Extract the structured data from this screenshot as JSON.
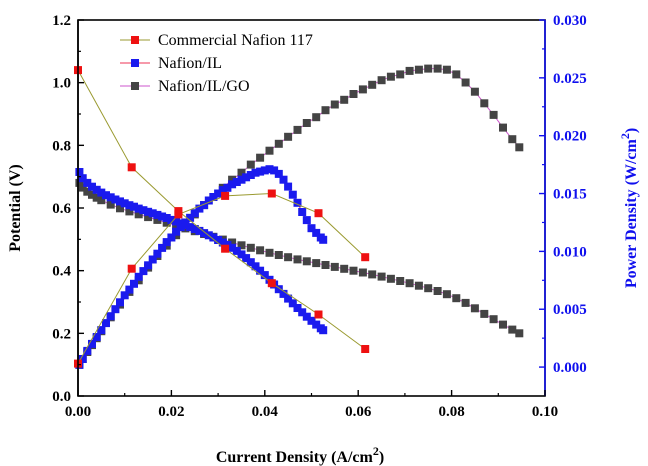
{
  "chart_data": {
    "type": "line",
    "xlabel": "Current Density (A/cm",
    "xlabel_sup": "2",
    "xlabel_close": ")",
    "ylabel_left": "Potential (V)",
    "ylabel_right": "Power Density (W/cm",
    "ylabel_right_sup": "2",
    "ylabel_right_close": ")",
    "xlim": [
      0.0,
      0.1
    ],
    "ylim_left": [
      0.0,
      1.2
    ],
    "ylim_right": [
      -0.0025,
      0.03
    ],
    "x_ticks": [
      "0.00",
      "0.02",
      "0.04",
      "0.06",
      "0.08",
      "0.10"
    ],
    "y_left_ticks": [
      "0.0",
      "0.2",
      "0.4",
      "0.6",
      "0.8",
      "1.0",
      "1.2"
    ],
    "y_right_ticks": [
      "0.000",
      "0.005",
      "0.010",
      "0.015",
      "0.020",
      "0.025",
      "0.030"
    ],
    "legend_position": "top-left",
    "colors": {
      "left_axis": "#000000",
      "right_axis": "#1010ee"
    },
    "series": [
      {
        "name": "Commercial Nafion 117",
        "marker_color": "#ee1111",
        "line_color": "#9a9a30",
        "polarization": {
          "x": [
            0.0,
            0.0115,
            0.0215,
            0.0315,
            0.0415,
            0.0515,
            0.0615
          ],
          "y": [
            1.04,
            0.73,
            0.59,
            0.47,
            0.36,
            0.26,
            0.15
          ]
        },
        "power": {
          "x": [
            0.0,
            0.0115,
            0.0215,
            0.0315,
            0.0415,
            0.0515,
            0.0615
          ],
          "y": [
            0.0003,
            0.0085,
            0.0132,
            0.0148,
            0.015,
            0.0133,
            0.0095
          ]
        }
      },
      {
        "name": "Nafion/IL",
        "marker_color": "#1a1aee",
        "line_color": "#ee3355",
        "polarization": {
          "x": [
            0.0003,
            0.001,
            0.002,
            0.003,
            0.004,
            0.005,
            0.006,
            0.007,
            0.008,
            0.009,
            0.01,
            0.011,
            0.012,
            0.013,
            0.014,
            0.015,
            0.016,
            0.017,
            0.018,
            0.019,
            0.02,
            0.021,
            0.022,
            0.023,
            0.024,
            0.025,
            0.026,
            0.027,
            0.028,
            0.029,
            0.03,
            0.031,
            0.032,
            0.033,
            0.034,
            0.035,
            0.036,
            0.037,
            0.038,
            0.039,
            0.04,
            0.041,
            0.042,
            0.043,
            0.044,
            0.045,
            0.046,
            0.047,
            0.048,
            0.049,
            0.05,
            0.051,
            0.052,
            0.0525
          ],
          "y": [
            0.715,
            0.695,
            0.68,
            0.668,
            0.658,
            0.649,
            0.641,
            0.634,
            0.627,
            0.621,
            0.615,
            0.609,
            0.604,
            0.598,
            0.593,
            0.588,
            0.583,
            0.578,
            0.573,
            0.568,
            0.562,
            0.557,
            0.551,
            0.545,
            0.539,
            0.533,
            0.527,
            0.52,
            0.513,
            0.506,
            0.498,
            0.49,
            0.482,
            0.473,
            0.463,
            0.452,
            0.44,
            0.427,
            0.414,
            0.4,
            0.386,
            0.371,
            0.356,
            0.341,
            0.326,
            0.311,
            0.296,
            0.281,
            0.267,
            0.253,
            0.24,
            0.228,
            0.216,
            0.21
          ]
        },
        "power": {
          "x": [
            0.0003,
            0.001,
            0.002,
            0.003,
            0.004,
            0.005,
            0.006,
            0.007,
            0.008,
            0.009,
            0.01,
            0.011,
            0.012,
            0.013,
            0.014,
            0.015,
            0.016,
            0.017,
            0.018,
            0.019,
            0.02,
            0.021,
            0.022,
            0.023,
            0.024,
            0.025,
            0.026,
            0.027,
            0.028,
            0.029,
            0.03,
            0.031,
            0.032,
            0.033,
            0.034,
            0.035,
            0.036,
            0.037,
            0.038,
            0.039,
            0.04,
            0.041,
            0.042,
            0.043,
            0.044,
            0.045,
            0.046,
            0.047,
            0.048,
            0.049,
            0.05,
            0.051,
            0.052,
            0.0525
          ],
          "y": [
            0.0002,
            0.0007,
            0.0014,
            0.002,
            0.0026,
            0.0032,
            0.0038,
            0.0044,
            0.005,
            0.0056,
            0.0062,
            0.0067,
            0.0072,
            0.0078,
            0.0083,
            0.0088,
            0.0093,
            0.0098,
            0.0103,
            0.0108,
            0.0112,
            0.0117,
            0.0121,
            0.0125,
            0.0129,
            0.0133,
            0.0137,
            0.014,
            0.0144,
            0.0147,
            0.015,
            0.0153,
            0.0155,
            0.0158,
            0.016,
            0.0162,
            0.0164,
            0.0166,
            0.0168,
            0.0169,
            0.017,
            0.0171,
            0.017,
            0.0167,
            0.0162,
            0.0156,
            0.0149,
            0.0142,
            0.0134,
            0.0127,
            0.012,
            0.0116,
            0.0112,
            0.011
          ]
        }
      },
      {
        "name": "Nafion/IL/GO",
        "marker_color": "#444444",
        "line_color": "#cc55cc",
        "polarization": {
          "x": [
            0.0003,
            0.001,
            0.002,
            0.003,
            0.004,
            0.005,
            0.007,
            0.009,
            0.011,
            0.013,
            0.015,
            0.017,
            0.019,
            0.021,
            0.023,
            0.025,
            0.027,
            0.029,
            0.031,
            0.033,
            0.035,
            0.037,
            0.039,
            0.041,
            0.043,
            0.045,
            0.047,
            0.049,
            0.051,
            0.053,
            0.055,
            0.057,
            0.059,
            0.061,
            0.063,
            0.065,
            0.067,
            0.069,
            0.071,
            0.073,
            0.075,
            0.077,
            0.079,
            0.081,
            0.083,
            0.085,
            0.087,
            0.089,
            0.091,
            0.093,
            0.0945
          ],
          "y": [
            0.68,
            0.665,
            0.652,
            0.642,
            0.633,
            0.625,
            0.611,
            0.599,
            0.589,
            0.58,
            0.571,
            0.562,
            0.553,
            0.544,
            0.535,
            0.526,
            0.517,
            0.508,
            0.499,
            0.49,
            0.481,
            0.473,
            0.465,
            0.457,
            0.45,
            0.443,
            0.436,
            0.43,
            0.424,
            0.418,
            0.412,
            0.406,
            0.4,
            0.394,
            0.388,
            0.381,
            0.374,
            0.367,
            0.36,
            0.352,
            0.344,
            0.335,
            0.325,
            0.312,
            0.297,
            0.28,
            0.262,
            0.245,
            0.228,
            0.212,
            0.2
          ]
        },
        "power": {
          "x": [
            0.0003,
            0.001,
            0.002,
            0.003,
            0.004,
            0.005,
            0.007,
            0.009,
            0.011,
            0.013,
            0.015,
            0.017,
            0.019,
            0.021,
            0.023,
            0.025,
            0.027,
            0.029,
            0.031,
            0.033,
            0.035,
            0.037,
            0.039,
            0.041,
            0.043,
            0.045,
            0.047,
            0.049,
            0.051,
            0.053,
            0.055,
            0.057,
            0.059,
            0.061,
            0.063,
            0.065,
            0.067,
            0.069,
            0.071,
            0.073,
            0.075,
            0.077,
            0.079,
            0.081,
            0.083,
            0.085,
            0.087,
            0.089,
            0.091,
            0.093,
            0.0945
          ],
          "y": [
            0.0002,
            0.0007,
            0.0013,
            0.0019,
            0.0025,
            0.0031,
            0.0043,
            0.0054,
            0.0065,
            0.0075,
            0.0086,
            0.0096,
            0.0105,
            0.0114,
            0.0123,
            0.0132,
            0.014,
            0.0147,
            0.0155,
            0.0162,
            0.0168,
            0.0175,
            0.0181,
            0.0187,
            0.0193,
            0.0199,
            0.0205,
            0.0211,
            0.0216,
            0.0222,
            0.0227,
            0.0231,
            0.0236,
            0.024,
            0.0244,
            0.0248,
            0.0251,
            0.0253,
            0.0256,
            0.0257,
            0.0258,
            0.0258,
            0.0257,
            0.0253,
            0.0246,
            0.0238,
            0.0228,
            0.0218,
            0.0207,
            0.0197,
            0.019
          ]
        }
      }
    ]
  }
}
